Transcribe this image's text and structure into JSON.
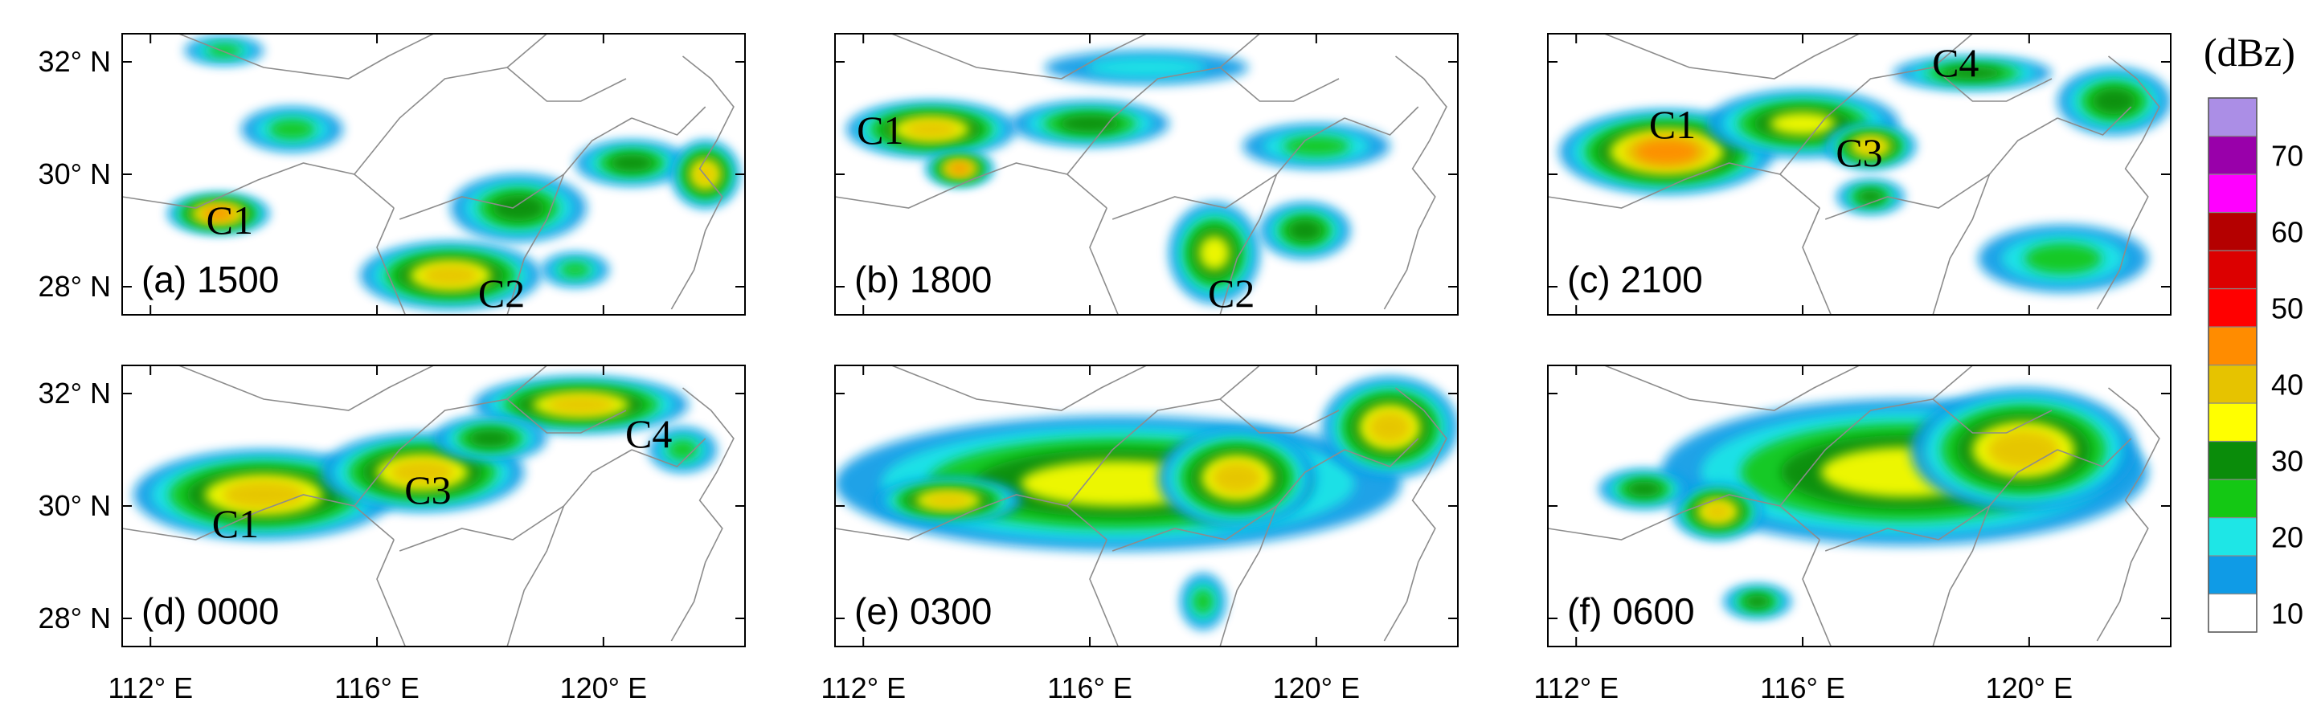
{
  "figure": {
    "colorbar": {
      "unit": "(dBz)",
      "tick_labels": [
        "10",
        "20",
        "30",
        "40",
        "50",
        "60",
        "70"
      ],
      "levels": [
        10,
        15,
        20,
        25,
        30,
        35,
        40,
        45,
        50,
        55,
        60,
        65,
        70,
        75
      ],
      "colors": [
        "#ffffff",
        "#0f9be6",
        "#1ee6e6",
        "#14c814",
        "#0a8c0a",
        "#ffff00",
        "#e6c300",
        "#ff8c00",
        "#ff0000",
        "#dc0000",
        "#b40000",
        "#ff00ff",
        "#9900aa",
        "#ab8ee6"
      ]
    },
    "map": {
      "lon_range": [
        111.5,
        122.5
      ],
      "lat_range": [
        27.5,
        32.5
      ],
      "x_ticks": [
        {
          "lon": 112,
          "label": "112° E"
        },
        {
          "lon": 116,
          "label": "116° E"
        },
        {
          "lon": 120,
          "label": "120° E"
        }
      ],
      "y_ticks": [
        {
          "lat": 32,
          "label": "32° N"
        },
        {
          "lat": 30,
          "label": "30° N"
        },
        {
          "lat": 28,
          "label": "28° N"
        }
      ]
    },
    "panels": [
      {
        "label": "(a) 1500",
        "cells": [
          {
            "id": "C1",
            "lon": 113.4,
            "lat": 29.2
          },
          {
            "id": "C2",
            "lon": 118.2,
            "lat": 27.9
          }
        ],
        "echoes": [
          {
            "lon": 113.2,
            "lat": 29.3,
            "rx": 0.9,
            "ry": 0.35,
            "v": 45
          },
          {
            "lon": 117.3,
            "lat": 28.2,
            "rx": 1.6,
            "ry": 0.6,
            "v": 40
          },
          {
            "lon": 114.5,
            "lat": 30.8,
            "rx": 0.9,
            "ry": 0.4,
            "v": 25
          },
          {
            "lon": 118.5,
            "lat": 29.4,
            "rx": 1.2,
            "ry": 0.6,
            "v": 30
          },
          {
            "lon": 120.5,
            "lat": 30.2,
            "rx": 1.0,
            "ry": 0.4,
            "v": 30
          },
          {
            "lon": 121.8,
            "lat": 30.0,
            "rx": 0.6,
            "ry": 0.6,
            "v": 40
          },
          {
            "lon": 113.3,
            "lat": 32.2,
            "rx": 0.7,
            "ry": 0.25,
            "v": 25
          },
          {
            "lon": 119.5,
            "lat": 28.3,
            "rx": 0.6,
            "ry": 0.3,
            "v": 25
          }
        ]
      },
      {
        "label": "(b) 1800",
        "cells": [
          {
            "id": "C1",
            "lon": 112.3,
            "lat": 30.8
          },
          {
            "id": "C2",
            "lon": 118.5,
            "lat": 27.9
          }
        ],
        "echoes": [
          {
            "lon": 113.2,
            "lat": 30.8,
            "rx": 1.5,
            "ry": 0.5,
            "v": 40
          },
          {
            "lon": 113.7,
            "lat": 30.1,
            "rx": 0.6,
            "ry": 0.3,
            "v": 45
          },
          {
            "lon": 116.0,
            "lat": 30.9,
            "rx": 1.4,
            "ry": 0.4,
            "v": 30
          },
          {
            "lon": 118.2,
            "lat": 28.6,
            "rx": 0.8,
            "ry": 0.9,
            "v": 35
          },
          {
            "lon": 120.0,
            "lat": 30.5,
            "rx": 1.3,
            "ry": 0.4,
            "v": 25
          },
          {
            "lon": 119.8,
            "lat": 29.0,
            "rx": 0.8,
            "ry": 0.5,
            "v": 30
          },
          {
            "lon": 117.0,
            "lat": 31.9,
            "rx": 1.8,
            "ry": 0.3,
            "v": 20
          }
        ]
      },
      {
        "label": "(c) 2100",
        "cells": [
          {
            "id": "C1",
            "lon": 113.7,
            "lat": 30.9
          },
          {
            "id": "C3",
            "lon": 117.0,
            "lat": 30.4
          },
          {
            "id": "C4",
            "lon": 118.7,
            "lat": 32.0
          }
        ],
        "echoes": [
          {
            "lon": 113.6,
            "lat": 30.4,
            "rx": 1.9,
            "ry": 0.75,
            "v": 45
          },
          {
            "lon": 116.0,
            "lat": 30.9,
            "rx": 1.7,
            "ry": 0.6,
            "v": 35
          },
          {
            "lon": 117.2,
            "lat": 30.5,
            "rx": 0.8,
            "ry": 0.4,
            "v": 40
          },
          {
            "lon": 119.0,
            "lat": 31.8,
            "rx": 1.4,
            "ry": 0.3,
            "v": 30
          },
          {
            "lon": 121.5,
            "lat": 31.3,
            "rx": 1.0,
            "ry": 0.6,
            "v": 30
          },
          {
            "lon": 117.2,
            "lat": 29.6,
            "rx": 0.6,
            "ry": 0.3,
            "v": 30
          },
          {
            "lon": 120.6,
            "lat": 28.5,
            "rx": 1.5,
            "ry": 0.6,
            "v": 25
          }
        ]
      },
      {
        "label": "(d) 0000",
        "cells": [
          {
            "id": "C1",
            "lon": 113.5,
            "lat": 29.7
          },
          {
            "id": "C3",
            "lon": 116.9,
            "lat": 30.3
          },
          {
            "id": "C4",
            "lon": 120.8,
            "lat": 31.3
          }
        ],
        "echoes": [
          {
            "lon": 114.0,
            "lat": 30.2,
            "rx": 2.3,
            "ry": 0.8,
            "v": 40
          },
          {
            "lon": 116.8,
            "lat": 30.6,
            "rx": 1.8,
            "ry": 0.7,
            "v": 40
          },
          {
            "lon": 119.6,
            "lat": 31.8,
            "rx": 1.9,
            "ry": 0.5,
            "v": 40
          },
          {
            "lon": 118.0,
            "lat": 31.2,
            "rx": 1.0,
            "ry": 0.4,
            "v": 30
          },
          {
            "lon": 121.4,
            "lat": 31.0,
            "rx": 0.6,
            "ry": 0.4,
            "v": 25
          }
        ]
      },
      {
        "label": "(e) 0300",
        "cells": [],
        "echoes": [
          {
            "lon": 116.5,
            "lat": 30.4,
            "rx": 5.0,
            "ry": 1.2,
            "v": 35
          },
          {
            "lon": 118.6,
            "lat": 30.5,
            "rx": 1.4,
            "ry": 0.9,
            "v": 40
          },
          {
            "lon": 121.3,
            "lat": 31.4,
            "rx": 1.2,
            "ry": 0.9,
            "v": 40
          },
          {
            "lon": 113.5,
            "lat": 30.1,
            "rx": 1.3,
            "ry": 0.4,
            "v": 40
          },
          {
            "lon": 118.0,
            "lat": 28.3,
            "rx": 0.4,
            "ry": 0.5,
            "v": 25
          }
        ]
      },
      {
        "label": "(f) 0600",
        "cells": [],
        "echoes": [
          {
            "lon": 117.8,
            "lat": 30.6,
            "rx": 4.3,
            "ry": 1.3,
            "v": 35
          },
          {
            "lon": 119.9,
            "lat": 31.0,
            "rx": 2.0,
            "ry": 1.1,
            "v": 40
          },
          {
            "lon": 114.5,
            "lat": 29.9,
            "rx": 0.8,
            "ry": 0.5,
            "v": 40
          },
          {
            "lon": 113.2,
            "lat": 30.3,
            "rx": 0.8,
            "ry": 0.35,
            "v": 30
          },
          {
            "lon": 115.2,
            "lat": 28.3,
            "rx": 0.6,
            "ry": 0.3,
            "v": 30
          }
        ]
      }
    ]
  }
}
